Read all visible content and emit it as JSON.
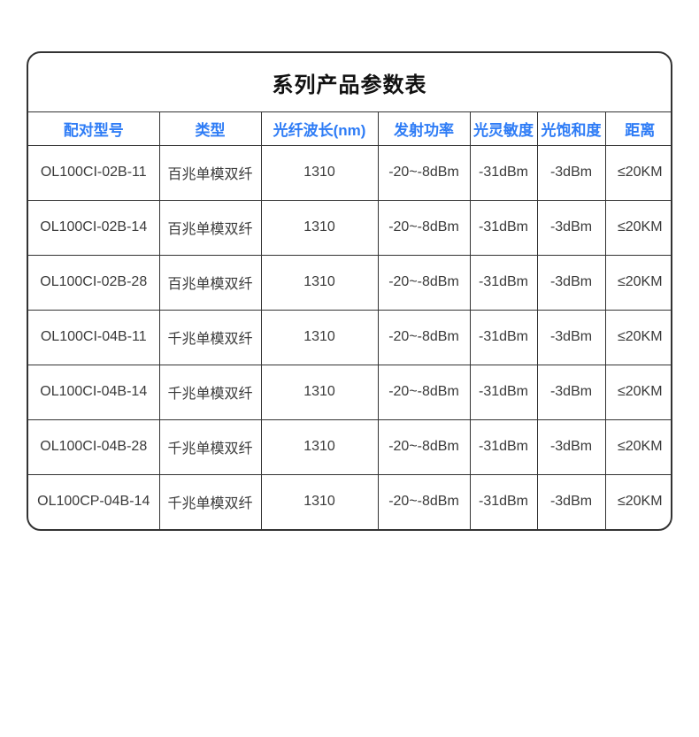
{
  "colors": {
    "header_text": "#2e7cf6",
    "body_text": "#3a3a3a",
    "border": "#333333",
    "title_text": "#111111",
    "background": "#ffffff"
  },
  "table": {
    "title": "系列产品参数表",
    "columns": [
      "配对型号",
      "类型",
      "光纤波长(nm)",
      "发射功率",
      "光灵敏度",
      "光饱和度",
      "距离"
    ],
    "rows": [
      [
        "OL100CI-02B-11",
        "百兆单模双纤",
        "1310",
        "-20~-8dBm",
        "-31dBm",
        "-3dBm",
        "≤20KM"
      ],
      [
        "OL100CI-02B-14",
        "百兆单模双纤",
        "1310",
        "-20~-8dBm",
        "-31dBm",
        "-3dBm",
        "≤20KM"
      ],
      [
        "OL100CI-02B-28",
        "百兆单模双纤",
        "1310",
        "-20~-8dBm",
        "-31dBm",
        "-3dBm",
        "≤20KM"
      ],
      [
        "OL100CI-04B-11",
        "千兆单模双纤",
        "1310",
        "-20~-8dBm",
        "-31dBm",
        "-3dBm",
        "≤20KM"
      ],
      [
        "OL100CI-04B-14",
        "千兆单模双纤",
        "1310",
        "-20~-8dBm",
        "-31dBm",
        "-3dBm",
        "≤20KM"
      ],
      [
        "OL100CI-04B-28",
        "千兆单模双纤",
        "1310",
        "-20~-8dBm",
        "-31dBm",
        "-3dBm",
        "≤20KM"
      ],
      [
        "OL100CP-04B-14",
        "千兆单模双纤",
        "1310",
        "-20~-8dBm",
        "-31dBm",
        "-3dBm",
        "≤20KM"
      ]
    ]
  }
}
